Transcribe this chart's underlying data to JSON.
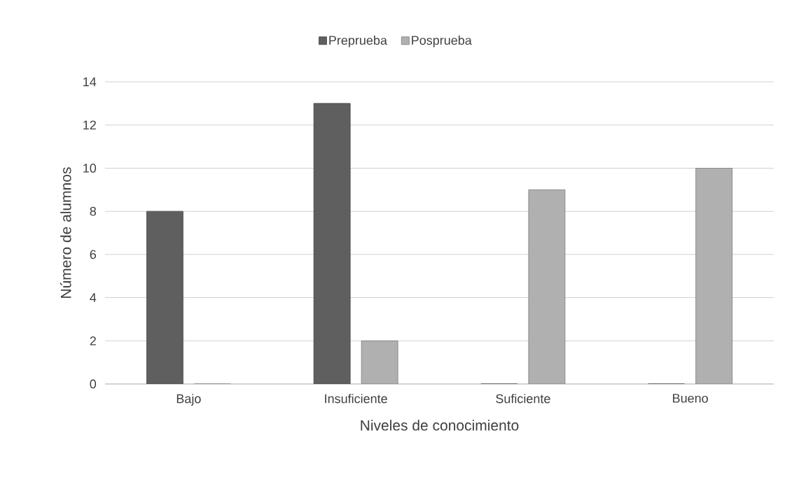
{
  "chart_data": {
    "type": "bar",
    "xlabel": "Niveles de conocimiento",
    "ylabel": "Número de alumnos",
    "categories": [
      "Bajo",
      "Insuficiente",
      "Suficiente",
      "Bueno"
    ],
    "series": [
      {
        "name": "Preprueba",
        "color": "#5f5f5f",
        "values": [
          8,
          13,
          0,
          0
        ]
      },
      {
        "name": "Posprueba",
        "color": "#b0b0b0",
        "values": [
          0,
          2,
          9,
          10
        ]
      }
    ],
    "ylim": [
      0,
      14
    ],
    "yticks": [
      0,
      2,
      4,
      6,
      8,
      10,
      12,
      14
    ],
    "grid": "y",
    "legend": "top"
  }
}
